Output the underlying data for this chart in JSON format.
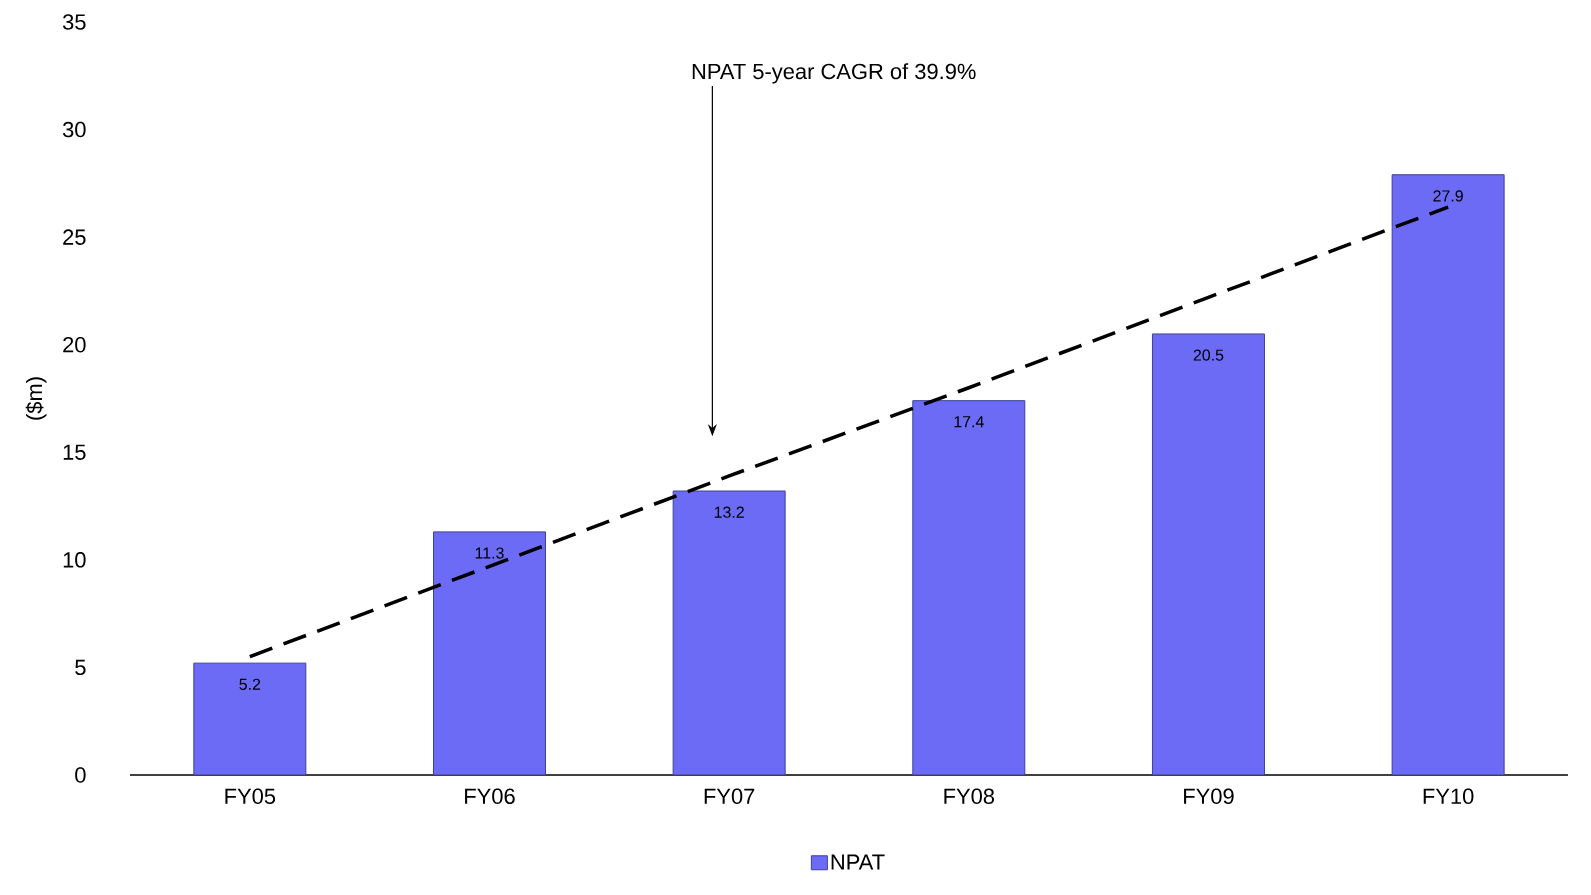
{
  "chart_data": {
    "type": "bar",
    "ylabel": "($m)",
    "categories": [
      "FY05",
      "FY06",
      "FY07",
      "FY08",
      "FY09",
      "FY10"
    ],
    "series": [
      {
        "name": "NPAT",
        "color": "#6b6bf5",
        "values": [
          5.2,
          11.3,
          13.2,
          17.4,
          20.5,
          27.9
        ],
        "value_labels": [
          "5.2",
          "11.3",
          "13.2",
          "17.4",
          "20.5",
          "27.9"
        ]
      },
      {
        "type": "line",
        "color": "#000000",
        "line_style": "dashed",
        "values": [
          5.5,
          9.7,
          13.9,
          18.0,
          22.2,
          26.4
        ]
      }
    ],
    "ylim": [
      0,
      35
    ],
    "yticks": [
      0,
      5,
      10,
      15,
      20,
      25,
      30,
      35
    ],
    "legend": "bottom",
    "annotations": [
      "NPAT 5-year CAGR of 39.9%"
    ]
  }
}
